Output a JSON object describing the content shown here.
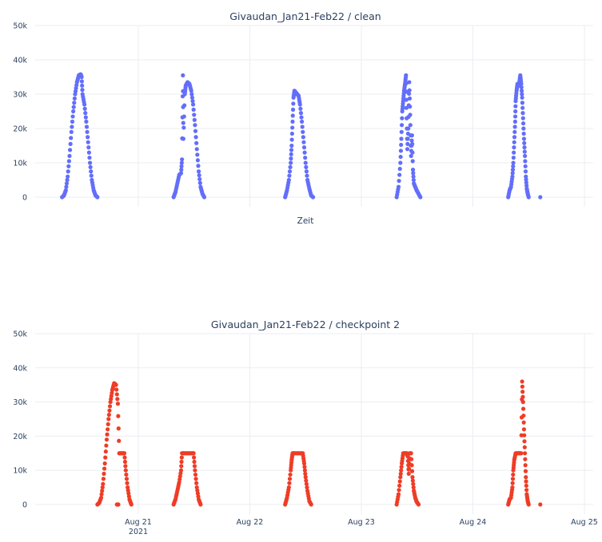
{
  "colors": {
    "clean": "#636efa",
    "checkpoint": "#ef3c26",
    "grid": "#ebedf2",
    "text": "#2a3f5f"
  },
  "chart_data": [
    {
      "type": "scatter",
      "title": "Givaudan_Jan21-Feb22 / clean",
      "xlabel": "Zeit",
      "ylabel": "",
      "x_range": [
        "2021-08-20 13:30",
        "2021-08-25 00:00"
      ],
      "ylim": [
        0,
        50000
      ],
      "yticks": [
        "0",
        "10k",
        "20k",
        "30k",
        "40k",
        "50k"
      ],
      "grid": true,
      "series": [
        {
          "color": "#636efa",
          "days": [
            {
              "date": "2021-08-20",
              "points": [
                [
                  7.6,
                  0
                ],
                [
                  8.0,
                  500
                ],
                [
                  8.4,
                  2000
                ],
                [
                  8.8,
                  6000
                ],
                [
                  9.2,
                  12000
                ],
                [
                  9.6,
                  19000
                ],
                [
                  10.0,
                  25000
                ],
                [
                  10.4,
                  30000
                ],
                [
                  10.8,
                  33500
                ],
                [
                  11.2,
                  35500
                ],
                [
                  11.6,
                  35800
                ],
                [
                  11.8,
                  35000
                ],
                [
                  12.0,
                  30000
                ],
                [
                  12.4,
                  27000
                ],
                [
                  12.8,
                  22000
                ],
                [
                  13.2,
                  16000
                ],
                [
                  13.6,
                  10000
                ],
                [
                  14.0,
                  5000
                ],
                [
                  14.4,
                  2000
                ],
                [
                  14.8,
                  500
                ],
                [
                  15.2,
                  0
                ]
              ]
            },
            {
              "date": "2021-08-21",
              "points": [
                [
                  7.6,
                  0
                ],
                [
                  8.0,
                  1500
                ],
                [
                  8.4,
                  4000
                ],
                [
                  8.8,
                  6500
                ],
                [
                  9.2,
                  7000
                ],
                [
                  9.4,
                  11000
                ],
                [
                  9.6,
                  35500
                ],
                [
                  9.7,
                  17000
                ],
                [
                  10.0,
                  30000
                ],
                [
                  10.2,
                  32500
                ],
                [
                  10.6,
                  33500
                ],
                [
                  11.0,
                  33000
                ],
                [
                  11.4,
                  31000
                ],
                [
                  11.8,
                  27000
                ],
                [
                  12.2,
                  21000
                ],
                [
                  12.6,
                  14000
                ],
                [
                  13.0,
                  7500
                ],
                [
                  13.4,
                  3000
                ],
                [
                  13.8,
                  1000
                ],
                [
                  14.2,
                  0
                ]
              ]
            },
            {
              "date": "2021-08-22",
              "points": [
                [
                  7.6,
                  0
                ],
                [
                  8.0,
                  2000
                ],
                [
                  8.4,
                  5000
                ],
                [
                  8.8,
                  10000
                ],
                [
                  9.0,
                  15000
                ],
                [
                  9.2,
                  22000
                ],
                [
                  9.4,
                  29000
                ],
                [
                  9.6,
                  31000
                ],
                [
                  9.9,
                  30500
                ],
                [
                  10.2,
                  30000
                ],
                [
                  10.5,
                  29500
                ],
                [
                  10.8,
                  27000
                ],
                [
                  11.2,
                  22000
                ],
                [
                  11.6,
                  16000
                ],
                [
                  12.0,
                  10000
                ],
                [
                  12.4,
                  5000
                ],
                [
                  12.8,
                  2500
                ],
                [
                  13.2,
                  500
                ],
                [
                  13.6,
                  0
                ]
              ]
            },
            {
              "date": "2021-08-23",
              "points": [
                [
                  7.6,
                  0
                ],
                [
                  8.0,
                  3000
                ],
                [
                  8.4,
                  10000
                ],
                [
                  8.6,
                  17000
                ],
                [
                  8.8,
                  25000
                ],
                [
                  9.0,
                  28000
                ],
                [
                  9.2,
                  31000
                ],
                [
                  9.4,
                  33000
                ],
                [
                  9.6,
                  35500
                ],
                [
                  9.7,
                  26000
                ],
                [
                  9.9,
                  14000
                ],
                [
                  10.1,
                  20000
                ],
                [
                  10.3,
                  33500
                ],
                [
                  10.5,
                  24000
                ],
                [
                  10.7,
                  12000
                ],
                [
                  10.9,
                  18000
                ],
                [
                  11.1,
                  8000
                ],
                [
                  11.3,
                  4000
                ],
                [
                  11.6,
                  3000
                ],
                [
                  11.9,
                  2000
                ],
                [
                  12.3,
                  1000
                ],
                [
                  12.7,
                  0
                ]
              ]
            },
            {
              "date": "2021-08-24",
              "points": [
                [
                  7.6,
                  0
                ],
                [
                  7.9,
                  2000
                ],
                [
                  8.2,
                  3000
                ],
                [
                  8.5,
                  6000
                ],
                [
                  8.7,
                  10000
                ],
                [
                  8.9,
                  16000
                ],
                [
                  9.1,
                  22000
                ],
                [
                  9.2,
                  28000
                ],
                [
                  9.4,
                  31000
                ],
                [
                  9.6,
                  33000
                ],
                [
                  9.8,
                  32500
                ],
                [
                  10.0,
                  33500
                ],
                [
                  10.2,
                  35500
                ],
                [
                  10.4,
                  33000
                ],
                [
                  10.6,
                  29000
                ],
                [
                  10.8,
                  23000
                ],
                [
                  11.0,
                  17000
                ],
                [
                  11.2,
                  12000
                ],
                [
                  11.4,
                  6000
                ],
                [
                  11.6,
                  2500
                ],
                [
                  11.8,
                  1000
                ],
                [
                  12.0,
                  0
                ],
                [
                  14.5,
                  0
                ]
              ]
            }
          ]
        }
      ]
    },
    {
      "type": "scatter",
      "title": "Givaudan_Jan21-Feb22 / checkpoint 2",
      "xlabel": "",
      "ylabel": "",
      "x_range": [
        "2021-08-20 13:30",
        "2021-08-25 00:00"
      ],
      "ylim": [
        0,
        50000
      ],
      "yticks": [
        "0",
        "10k",
        "20k",
        "30k",
        "40k",
        "50k"
      ],
      "xticks": [
        {
          "date": "2021-08-21",
          "label": "Aug 21",
          "sublabel": "2021"
        },
        {
          "date": "2021-08-22",
          "label": "Aug 22",
          "sublabel": ""
        },
        {
          "date": "2021-08-23",
          "label": "Aug 23",
          "sublabel": ""
        },
        {
          "date": "2021-08-24",
          "label": "Aug 24",
          "sublabel": ""
        },
        {
          "date": "2021-08-25",
          "label": "Aug 25",
          "sublabel": ""
        }
      ],
      "grid": true,
      "series": [
        {
          "color": "#ef3c26",
          "days": [
            {
              "date": "2021-08-20",
              "points": [
                [
                  15.2,
                  0
                ],
                [
                  15.6,
                  500
                ],
                [
                  16.0,
                  2000
                ],
                [
                  16.4,
                  6000
                ],
                [
                  16.8,
                  12000
                ],
                [
                  17.2,
                  19000
                ],
                [
                  17.6,
                  25000
                ],
                [
                  18.0,
                  30000
                ],
                [
                  18.4,
                  33500
                ],
                [
                  18.8,
                  35500
                ],
                [
                  19.2,
                  35000
                ],
                [
                  19.6,
                  29500
                ],
                [
                  19.9,
                  15000
                ],
                [
                  20.3,
                  15000
                ],
                [
                  20.7,
                  15000
                ],
                [
                  21.0,
                  15000
                ],
                [
                  21.3,
                  10000
                ],
                [
                  21.7,
                  5000
                ],
                [
                  22.1,
                  1500
                ],
                [
                  22.5,
                  0
                ],
                [
                  19.4,
                  0
                ],
                [
                  19.7,
                  0
                ]
              ]
            },
            {
              "date": "2021-08-21",
              "points": [
                [
                  7.6,
                  0
                ],
                [
                  8.0,
                  1500
                ],
                [
                  8.4,
                  4000
                ],
                [
                  8.8,
                  6500
                ],
                [
                  9.2,
                  10000
                ],
                [
                  9.4,
                  15000
                ],
                [
                  9.8,
                  15000
                ],
                [
                  10.4,
                  15000
                ],
                [
                  11.0,
                  15000
                ],
                [
                  11.6,
                  15000
                ],
                [
                  11.9,
                  15000
                ],
                [
                  12.2,
                  10000
                ],
                [
                  12.6,
                  5000
                ],
                [
                  13.0,
                  1500
                ],
                [
                  13.4,
                  0
                ]
              ]
            },
            {
              "date": "2021-08-22",
              "points": [
                [
                  7.6,
                  0
                ],
                [
                  8.0,
                  2000
                ],
                [
                  8.4,
                  5000
                ],
                [
                  8.8,
                  10000
                ],
                [
                  9.0,
                  13000
                ],
                [
                  9.2,
                  15000
                ],
                [
                  9.6,
                  15000
                ],
                [
                  10.2,
                  15000
                ],
                [
                  10.8,
                  15000
                ],
                [
                  11.4,
                  15000
                ],
                [
                  11.7,
                  12000
                ],
                [
                  12.0,
                  8000
                ],
                [
                  12.4,
                  4000
                ],
                [
                  12.8,
                  1000
                ],
                [
                  13.2,
                  0
                ]
              ]
            },
            {
              "date": "2021-08-23",
              "points": [
                [
                  7.6,
                  0
                ],
                [
                  8.0,
                  3000
                ],
                [
                  8.4,
                  8000
                ],
                [
                  8.7,
                  12000
                ],
                [
                  9.0,
                  15000
                ],
                [
                  9.4,
                  15000
                ],
                [
                  9.8,
                  15000
                ],
                [
                  10.0,
                  14000
                ],
                [
                  10.2,
                  9000
                ],
                [
                  10.4,
                  15000
                ],
                [
                  10.7,
                  15000
                ],
                [
                  11.0,
                  8000
                ],
                [
                  11.3,
                  4000
                ],
                [
                  11.6,
                  2000
                ],
                [
                  11.9,
                  800
                ],
                [
                  12.3,
                  0
                ]
              ]
            },
            {
              "date": "2021-08-24",
              "points": [
                [
                  7.6,
                  0
                ],
                [
                  7.9,
                  1500
                ],
                [
                  8.2,
                  2000
                ],
                [
                  8.5,
                  5000
                ],
                [
                  8.7,
                  10000
                ],
                [
                  8.9,
                  13000
                ],
                [
                  9.2,
                  15000
                ],
                [
                  9.6,
                  15000
                ],
                [
                  10.0,
                  15000
                ],
                [
                  10.4,
                  15000
                ],
                [
                  10.6,
                  36000
                ],
                [
                  10.8,
                  30000
                ],
                [
                  11.0,
                  22000
                ],
                [
                  11.2,
                  15000
                ],
                [
                  11.4,
                  8000
                ],
                [
                  11.6,
                  3000
                ],
                [
                  11.8,
                  1000
                ],
                [
                  12.0,
                  0
                ],
                [
                  14.5,
                  0
                ]
              ]
            }
          ]
        }
      ]
    }
  ]
}
